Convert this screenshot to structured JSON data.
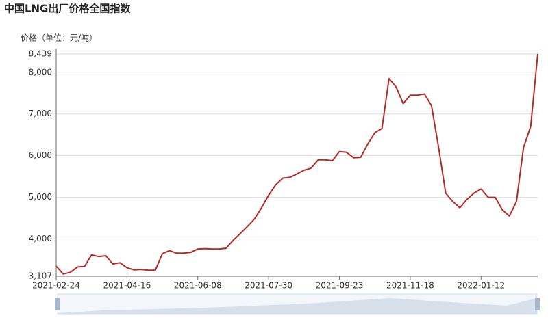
{
  "chart_data": {
    "type": "line",
    "title": "中国LNG出厂价格全国指数",
    "y_label": "价格（单位：元/吨）",
    "color": "#b52a26",
    "categories": [
      "2021-02-24",
      null,
      null,
      null,
      null,
      null,
      null,
      null,
      null,
      null,
      "2021-04-16",
      null,
      null,
      null,
      null,
      null,
      null,
      null,
      null,
      null,
      "2021-06-08",
      null,
      null,
      null,
      null,
      null,
      null,
      null,
      null,
      null,
      "2021-07-30",
      null,
      null,
      null,
      null,
      null,
      null,
      null,
      null,
      null,
      "2021-09-23",
      null,
      null,
      null,
      null,
      null,
      null,
      null,
      null,
      null,
      "2021-11-18",
      null,
      null,
      null,
      null,
      null,
      null,
      null,
      null,
      null,
      "2022-01-12",
      null,
      null,
      null,
      null,
      null,
      null,
      null,
      null
    ],
    "values": [
      3350,
      3160,
      3200,
      3330,
      3340,
      3620,
      3580,
      3600,
      3400,
      3430,
      3310,
      3260,
      3270,
      3250,
      3250,
      3650,
      3720,
      3660,
      3660,
      3680,
      3760,
      3770,
      3760,
      3760,
      3780,
      3970,
      4130,
      4300,
      4480,
      4750,
      5050,
      5300,
      5460,
      5480,
      5560,
      5650,
      5700,
      5900,
      5900,
      5880,
      6100,
      6080,
      5950,
      5960,
      6280,
      6550,
      6650,
      7850,
      7650,
      7250,
      7450,
      7450,
      7480,
      7200,
      6200,
      5100,
      4900,
      4750,
      4950,
      5100,
      5200,
      5000,
      5000,
      4700,
      4550,
      4900,
      6200,
      6700,
      8439
    ],
    "ylim": [
      3107,
      8439
    ],
    "yticks": [
      {
        "value": 3107,
        "label": "3,107"
      },
      {
        "value": 4000,
        "label": "4,000"
      },
      {
        "value": 5000,
        "label": "5,000"
      },
      {
        "value": 6000,
        "label": "6,000"
      },
      {
        "value": 7000,
        "label": "7,000"
      },
      {
        "value": 8000,
        "label": "8,000"
      },
      {
        "value": 8439,
        "label": "8,439"
      }
    ],
    "grid": true
  }
}
